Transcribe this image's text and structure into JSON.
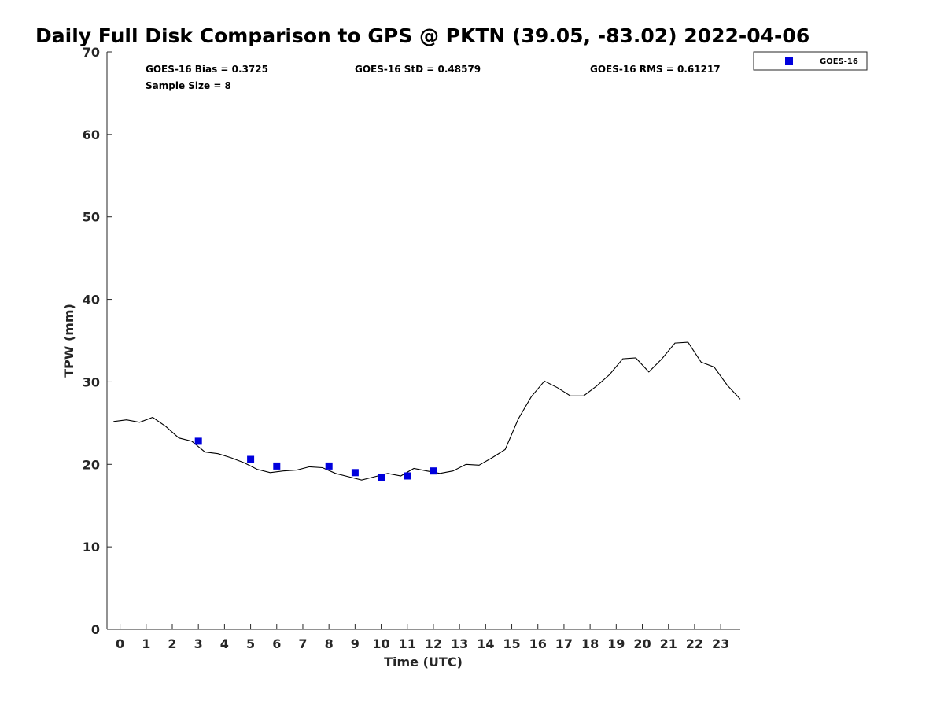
{
  "chart_data": {
    "type": "scatter",
    "title": "Daily Full Disk Comparison to GPS @ PKTN (39.05, -83.02) 2022-04-06",
    "xlabel": "Time (UTC)",
    "ylabel": "TPW (mm)",
    "xlim": [
      -0.5,
      23.75
    ],
    "ylim": [
      0,
      70
    ],
    "x_ticks": [
      0,
      1,
      2,
      3,
      4,
      5,
      6,
      7,
      8,
      9,
      10,
      11,
      12,
      13,
      14,
      15,
      16,
      17,
      18,
      19,
      20,
      21,
      22,
      23
    ],
    "y_ticks": [
      0,
      10,
      20,
      30,
      40,
      50,
      60,
      70
    ],
    "grid": false,
    "legend_position": "top-right, outside plot",
    "stats": {
      "bias": "GOES-16 Bias = 0.3725",
      "std": "GOES-16 StD = 0.48579",
      "rms": "GOES-16 RMS = 0.61217",
      "sample": "Sample Size = 8"
    },
    "series": [
      {
        "name": "GOES-16",
        "kind": "scatter",
        "color": "#0000dd",
        "marker": "square",
        "x": [
          3.0,
          5.0,
          6.0,
          8.0,
          9.0,
          10.0,
          11.0,
          12.0
        ],
        "y": [
          22.8,
          20.6,
          19.8,
          19.8,
          19.0,
          18.4,
          18.6,
          19.2
        ]
      },
      {
        "name": "",
        "kind": "line",
        "color": "#000000",
        "x": [
          -0.25,
          0.25,
          0.75,
          1.25,
          1.75,
          2.25,
          2.75,
          3.25,
          3.75,
          4.25,
          4.75,
          5.25,
          5.75,
          6.25,
          6.75,
          7.25,
          7.75,
          8.25,
          8.75,
          9.25,
          9.75,
          10.25,
          10.75,
          11.25,
          11.75,
          12.25,
          12.75,
          13.25,
          13.75,
          14.25,
          14.75,
          15.25,
          15.75,
          16.25,
          16.75,
          17.25,
          17.75,
          18.25,
          18.75,
          19.25,
          19.75,
          20.25,
          20.75,
          21.25,
          21.75,
          22.25,
          22.75,
          23.25,
          23.75
        ],
        "y": [
          25.2,
          25.4,
          25.1,
          25.7,
          24.6,
          23.2,
          22.8,
          21.5,
          21.3,
          20.8,
          20.2,
          19.4,
          19.0,
          19.2,
          19.3,
          19.7,
          19.6,
          18.9,
          18.5,
          18.1,
          18.5,
          18.9,
          18.6,
          19.5,
          19.2,
          18.9,
          19.2,
          20.0,
          19.9,
          20.8,
          21.8,
          25.5,
          28.2,
          30.1,
          29.3,
          28.3,
          28.3,
          29.5,
          30.9,
          32.8,
          32.9,
          31.2,
          32.8,
          34.7,
          34.8,
          32.4,
          31.8,
          29.6,
          27.9
        ]
      }
    ]
  }
}
